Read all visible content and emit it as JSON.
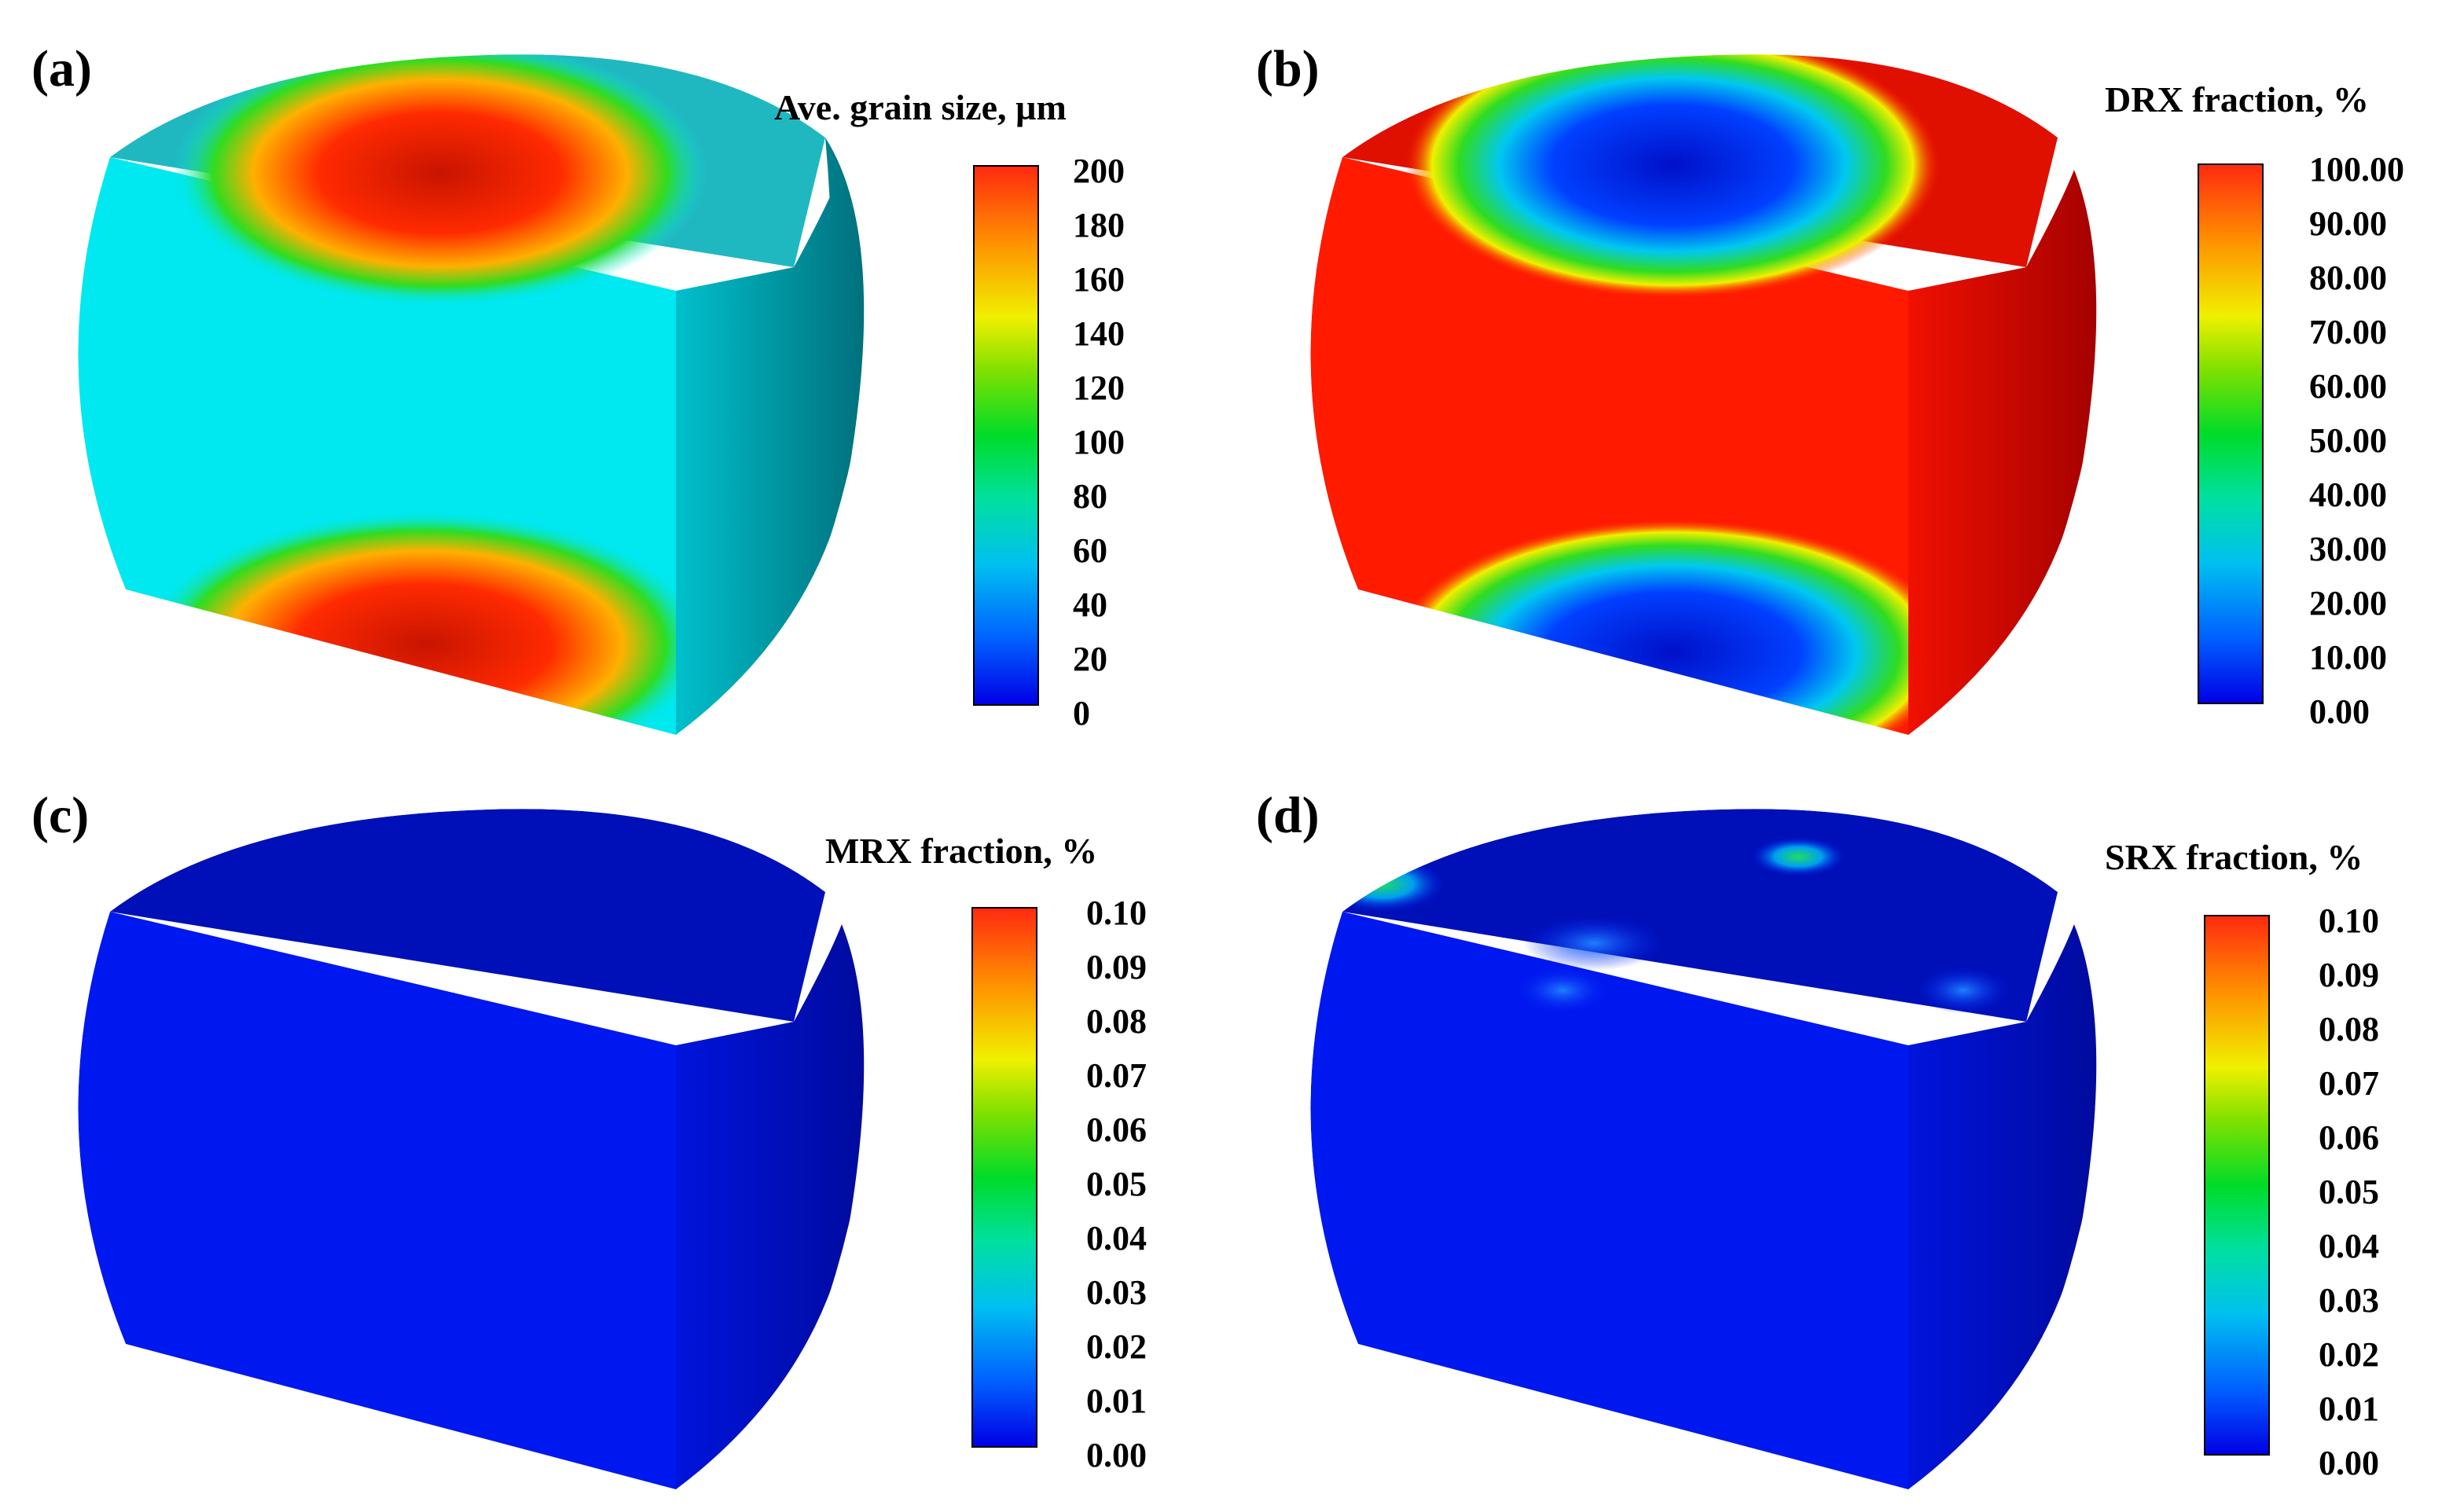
{
  "panels": [
    {
      "label": "(a)",
      "title": "Ave. grain size, µm",
      "ticks": [
        "200",
        "180",
        "160",
        "140",
        "120",
        "100",
        "80",
        "60",
        "40",
        "20",
        "0"
      ],
      "map": "grain"
    },
    {
      "label": "(b)",
      "title": "DRX fraction, %",
      "ticks": [
        "100.00",
        "90.00",
        "80.00",
        "70.00",
        "60.00",
        "50.00",
        "40.00",
        "30.00",
        "20.00",
        "10.00",
        "0.00"
      ],
      "map": "drx"
    },
    {
      "label": "(c)",
      "title": "MRX fraction, %",
      "ticks": [
        "0.10",
        "0.09",
        "0.08",
        "0.07",
        "0.06",
        "0.05",
        "0.04",
        "0.03",
        "0.02",
        "0.01",
        "0.00"
      ],
      "map": "mrx"
    },
    {
      "label": "(d)",
      "title": "SRX fraction, %",
      "ticks": [
        "0.10",
        "0.09",
        "0.08",
        "0.07",
        "0.06",
        "0.05",
        "0.04",
        "0.03",
        "0.02",
        "0.01",
        "0.00"
      ],
      "map": "srx"
    }
  ],
  "colors": {
    "grain_base": "#00e8f0",
    "grain_dark": "#008a96",
    "drx_base": "#ff1a00",
    "drx_dark": "#c80000",
    "low_base": "#0018f0",
    "low_dark": "#000fb4",
    "hot_red": "#e61800",
    "mid_green": "#20dc20",
    "mid_yellow": "#f0f000",
    "deep_blue": "#0010c8"
  }
}
